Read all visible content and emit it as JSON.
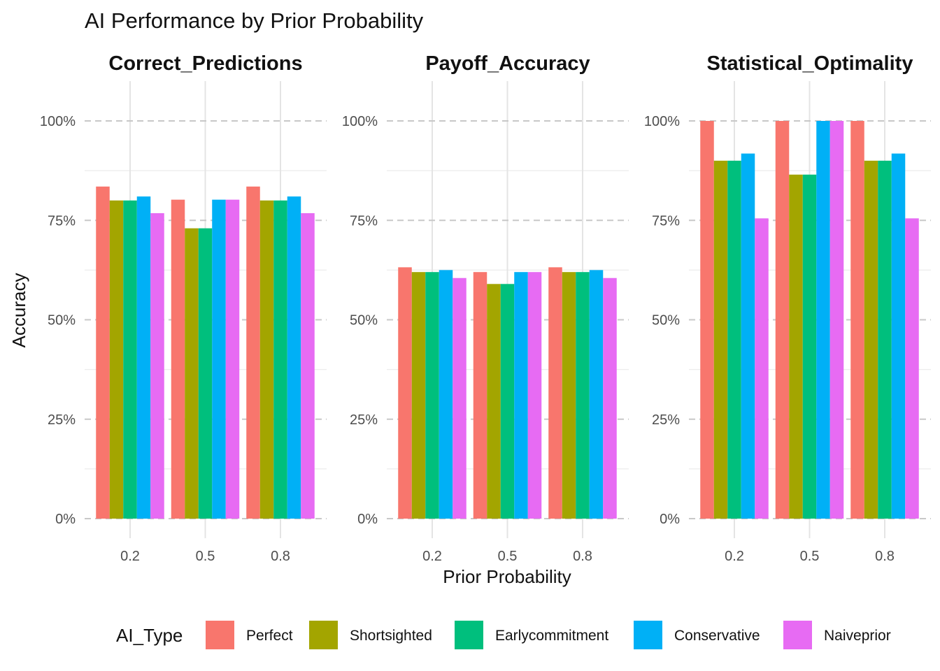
{
  "title": "AI Performance by Prior Probability",
  "xlabel": "Prior Probability",
  "ylabel": "Accuracy",
  "legend": {
    "title": "AI_Type",
    "position": "bottom"
  },
  "colors": {
    "Perfect": "#F8766D",
    "Shortsighted": "#A3A500",
    "Earlycommitment": "#00BF7D",
    "Conservative": "#00B0F6",
    "Naiveprior": "#E76BF3"
  },
  "chart_data": {
    "type": "bar",
    "layout": "faceted-grouped",
    "categories": [
      "0.2",
      "0.5",
      "0.8"
    ],
    "series_names": [
      "Perfect",
      "Shortsighted",
      "Earlycommitment",
      "Conservative",
      "Naiveprior"
    ],
    "y_ticks": [
      "0%",
      "25%",
      "50%",
      "75%",
      "100%"
    ],
    "ylim": [
      0,
      1.1
    ],
    "grid": true,
    "facets": [
      {
        "title": "Correct_Predictions",
        "series": [
          {
            "name": "Perfect",
            "values": [
              0.835,
              0.802,
              0.835
            ]
          },
          {
            "name": "Shortsighted",
            "values": [
              0.8,
              0.73,
              0.8
            ]
          },
          {
            "name": "Earlycommitment",
            "values": [
              0.8,
              0.73,
              0.8
            ]
          },
          {
            "name": "Conservative",
            "values": [
              0.81,
              0.802,
              0.81
            ]
          },
          {
            "name": "Naiveprior",
            "values": [
              0.768,
              0.802,
              0.768
            ]
          }
        ]
      },
      {
        "title": "Payoff_Accuracy",
        "series": [
          {
            "name": "Perfect",
            "values": [
              0.632,
              0.62,
              0.632
            ]
          },
          {
            "name": "Shortsighted",
            "values": [
              0.62,
              0.59,
              0.62
            ]
          },
          {
            "name": "Earlycommitment",
            "values": [
              0.62,
              0.59,
              0.62
            ]
          },
          {
            "name": "Conservative",
            "values": [
              0.625,
              0.62,
              0.625
            ]
          },
          {
            "name": "Naiveprior",
            "values": [
              0.605,
              0.62,
              0.605
            ]
          }
        ]
      },
      {
        "title": "Statistical_Optimality",
        "series": [
          {
            "name": "Perfect",
            "values": [
              1.0,
              1.0,
              1.0
            ]
          },
          {
            "name": "Shortsighted",
            "values": [
              0.9,
              0.865,
              0.9
            ]
          },
          {
            "name": "Earlycommitment",
            "values": [
              0.9,
              0.865,
              0.9
            ]
          },
          {
            "name": "Conservative",
            "values": [
              0.918,
              1.0,
              0.918
            ]
          },
          {
            "name": "Naiveprior",
            "values": [
              0.755,
              1.0,
              0.755
            ]
          }
        ]
      }
    ]
  }
}
